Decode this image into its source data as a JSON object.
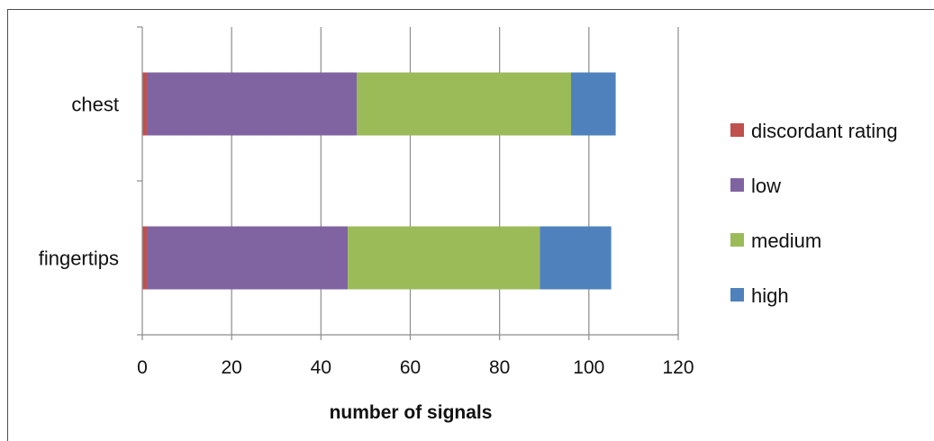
{
  "chart_data": {
    "type": "bar",
    "orientation": "horizontal",
    "stacked": true,
    "categories": [
      "chest",
      "fingertips"
    ],
    "series": [
      {
        "name": "discordant rating",
        "color": "#c0504d",
        "values": [
          1,
          1
        ]
      },
      {
        "name": "low",
        "color": "#8064a2",
        "values": [
          47,
          45
        ]
      },
      {
        "name": "medium",
        "color": "#9bbb59",
        "values": [
          48,
          43
        ]
      },
      {
        "name": "high",
        "color": "#4f81bd",
        "values": [
          10,
          16
        ]
      }
    ],
    "xlabel": "number of signals",
    "ylabel": "",
    "xlim": [
      0,
      120
    ],
    "xticks": [
      "0",
      "20",
      "40",
      "60",
      "80",
      "100",
      "120"
    ],
    "grid": "vertical",
    "legend_position": "right"
  }
}
